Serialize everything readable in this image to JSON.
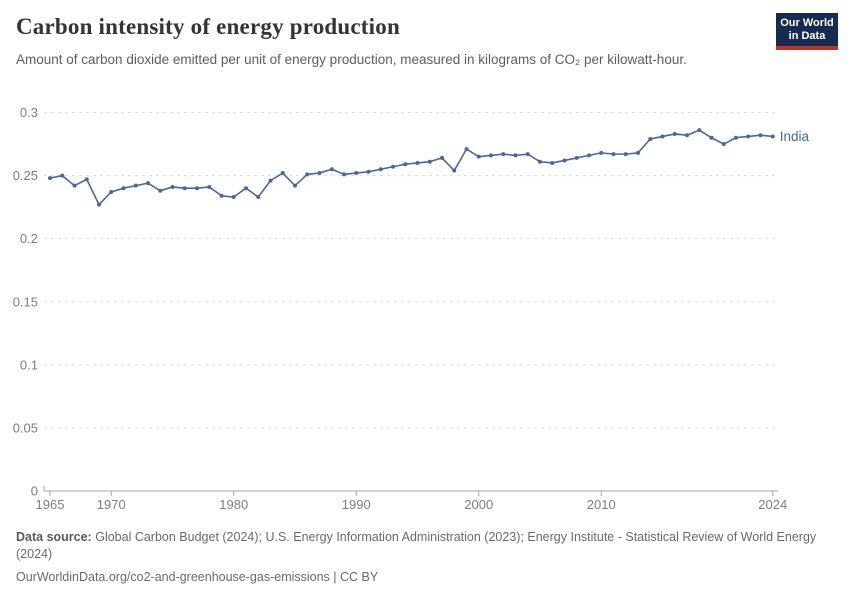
{
  "header": {
    "title": "Carbon intensity of energy production",
    "subtitle": "Amount of carbon dioxide emitted per unit of energy production, measured in kilograms of CO₂ per kilowatt-hour.",
    "logo": {
      "line1": "Our World",
      "line2": "in Data",
      "bg_color": "#152B52",
      "accent_color": "#BE302A"
    }
  },
  "chart_data": {
    "type": "line",
    "title": "Carbon intensity of energy production",
    "xlabel": "",
    "ylabel": "kilograms of CO₂ per kilowatt-hour",
    "xlim": [
      1965,
      2024
    ],
    "ylim": [
      0,
      0.3
    ],
    "x_ticks": [
      1965,
      1970,
      1980,
      1990,
      2000,
      2010,
      2024
    ],
    "y_ticks": [
      0,
      0.05,
      0.1,
      0.15,
      0.2,
      0.25,
      0.3
    ],
    "grid": "horizontal-dashed",
    "legend_position": "end-of-line",
    "series": [
      {
        "name": "India",
        "color": "#4A67A0",
        "x": [
          1965,
          1966,
          1967,
          1968,
          1969,
          1970,
          1971,
          1972,
          1973,
          1974,
          1975,
          1976,
          1977,
          1978,
          1979,
          1980,
          1981,
          1982,
          1983,
          1984,
          1985,
          1986,
          1987,
          1988,
          1989,
          1990,
          1991,
          1992,
          1993,
          1994,
          1995,
          1996,
          1997,
          1998,
          1999,
          2000,
          2001,
          2002,
          2003,
          2004,
          2005,
          2006,
          2007,
          2008,
          2009,
          2010,
          2011,
          2012,
          2013,
          2014,
          2015,
          2016,
          2017,
          2018,
          2019,
          2020,
          2021,
          2022,
          2023,
          2024
        ],
        "values": [
          0.248,
          0.25,
          0.242,
          0.247,
          0.227,
          0.237,
          0.24,
          0.242,
          0.244,
          0.238,
          0.241,
          0.24,
          0.24,
          0.241,
          0.234,
          0.233,
          0.24,
          0.233,
          0.246,
          0.252,
          0.242,
          0.251,
          0.252,
          0.255,
          0.251,
          0.252,
          0.253,
          0.255,
          0.257,
          0.259,
          0.26,
          0.261,
          0.264,
          0.254,
          0.271,
          0.265,
          0.266,
          0.267,
          0.266,
          0.267,
          0.261,
          0.26,
          0.262,
          0.264,
          0.266,
          0.268,
          0.267,
          0.267,
          0.268,
          0.279,
          0.281,
          0.283,
          0.282,
          0.286,
          0.28,
          0.275,
          0.28,
          0.281,
          0.282,
          0.281
        ]
      }
    ],
    "style": {
      "grid_color": "#dcdcdc",
      "axis_color": "#a6a6a6",
      "tick_label_color": "#7f7f7f"
    }
  },
  "footer": {
    "source_label": "Data source:",
    "source_text": "Global Carbon Budget (2024); U.S. Energy Information Administration (2023); Energy Institute - Statistical Review of World Energy (2024)",
    "citation": "OurWorldinData.org/co2-and-greenhouse-gas-emissions | CC BY"
  }
}
